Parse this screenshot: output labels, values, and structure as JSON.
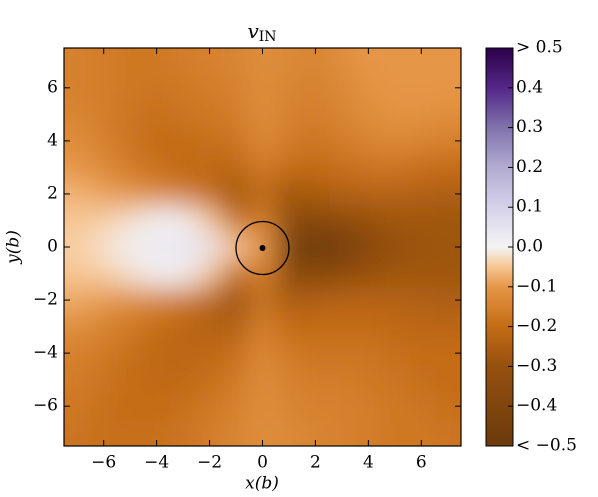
{
  "chart_data": {
    "type": "heatmap",
    "title": {
      "main": "v",
      "sub": "IN"
    },
    "x_label": "x(b)",
    "y_label": "y(b)",
    "colormap": "PuOr",
    "x": [
      -7,
      -6,
      -5,
      -4,
      -3,
      -2,
      -1,
      0,
      1,
      2,
      3,
      4,
      5,
      6,
      7
    ],
    "y": [
      7,
      6,
      5,
      4,
      3,
      2,
      1,
      0,
      -1,
      -2,
      -3,
      -4,
      -5,
      -6,
      -7
    ],
    "values": [
      [
        -0.15,
        -0.16,
        -0.17,
        -0.17,
        -0.16,
        -0.15,
        -0.14,
        -0.12,
        -0.13,
        -0.14,
        -0.12,
        -0.1,
        -0.1,
        -0.1,
        -0.1
      ],
      [
        -0.15,
        -0.16,
        -0.17,
        -0.18,
        -0.17,
        -0.16,
        -0.15,
        -0.12,
        -0.14,
        -0.15,
        -0.13,
        -0.11,
        -0.1,
        -0.1,
        -0.1
      ],
      [
        -0.14,
        -0.16,
        -0.18,
        -0.19,
        -0.18,
        -0.17,
        -0.16,
        -0.12,
        -0.15,
        -0.16,
        -0.14,
        -0.12,
        -0.11,
        -0.11,
        -0.12
      ],
      [
        -0.12,
        -0.15,
        -0.18,
        -0.2,
        -0.2,
        -0.19,
        -0.18,
        -0.13,
        -0.16,
        -0.18,
        -0.16,
        -0.14,
        -0.13,
        -0.14,
        -0.15
      ],
      [
        -0.1,
        -0.13,
        -0.16,
        -0.19,
        -0.21,
        -0.21,
        -0.22,
        -0.16,
        -0.2,
        -0.2,
        -0.19,
        -0.18,
        -0.18,
        -0.19,
        -0.2
      ],
      [
        -0.07,
        -0.09,
        -0.11,
        -0.13,
        -0.16,
        -0.2,
        -0.28,
        -0.2,
        -0.28,
        -0.26,
        -0.24,
        -0.23,
        -0.23,
        -0.24,
        -0.25
      ],
      [
        -0.05,
        -0.04,
        -0.02,
        0.0,
        0.0,
        -0.05,
        -0.2,
        -0.15,
        -0.35,
        -0.38,
        -0.34,
        -0.3,
        -0.28,
        -0.28,
        -0.28
      ],
      [
        -0.04,
        -0.02,
        0.01,
        0.04,
        0.05,
        0.04,
        -0.05,
        -0.1,
        -0.45,
        -0.48,
        -0.46,
        -0.36,
        -0.3,
        -0.29,
        -0.28
      ],
      [
        -0.05,
        -0.04,
        -0.02,
        0.0,
        0.0,
        -0.05,
        -0.2,
        -0.15,
        -0.35,
        -0.38,
        -0.34,
        -0.3,
        -0.28,
        -0.28,
        -0.28
      ],
      [
        -0.08,
        -0.1,
        -0.12,
        -0.14,
        -0.17,
        -0.22,
        -0.3,
        -0.18,
        -0.26,
        -0.24,
        -0.23,
        -0.23,
        -0.23,
        -0.24,
        -0.25
      ],
      [
        -0.12,
        -0.14,
        -0.17,
        -0.2,
        -0.22,
        -0.24,
        -0.24,
        -0.15,
        -0.2,
        -0.2,
        -0.2,
        -0.2,
        -0.21,
        -0.22,
        -0.22
      ],
      [
        -0.15,
        -0.17,
        -0.19,
        -0.21,
        -0.22,
        -0.21,
        -0.19,
        -0.13,
        -0.17,
        -0.18,
        -0.18,
        -0.18,
        -0.19,
        -0.2,
        -0.2
      ],
      [
        -0.16,
        -0.18,
        -0.2,
        -0.21,
        -0.21,
        -0.19,
        -0.17,
        -0.12,
        -0.15,
        -0.16,
        -0.16,
        -0.17,
        -0.18,
        -0.19,
        -0.2
      ],
      [
        -0.17,
        -0.19,
        -0.2,
        -0.2,
        -0.19,
        -0.17,
        -0.15,
        -0.12,
        -0.14,
        -0.15,
        -0.15,
        -0.16,
        -0.17,
        -0.18,
        -0.19
      ],
      [
        -0.18,
        -0.19,
        -0.19,
        -0.19,
        -0.18,
        -0.16,
        -0.14,
        -0.12,
        -0.13,
        -0.14,
        -0.15,
        -0.16,
        -0.17,
        -0.17,
        -0.18
      ]
    ],
    "xlim": [
      -7.5,
      7.5
    ],
    "ylim": [
      -7.5,
      7.5
    ],
    "xticks": [
      {
        "value": -6,
        "label": "−6"
      },
      {
        "value": -4,
        "label": "−4"
      },
      {
        "value": -2,
        "label": "−2"
      },
      0,
      2,
      4,
      6
    ],
    "yticks": [
      {
        "value": -6,
        "label": "−6"
      },
      {
        "value": -4,
        "label": "−4"
      },
      {
        "value": -2,
        "label": "−2"
      },
      0,
      2,
      4,
      6
    ],
    "clim": [
      -0.5,
      0.5
    ],
    "cticks": [
      {
        "value": -0.5,
        "label": "< −0.5"
      },
      {
        "value": -0.4,
        "label": "−0.4"
      },
      {
        "value": -0.3,
        "label": "−0.3"
      },
      {
        "value": -0.2,
        "label": "−0.2"
      },
      {
        "value": -0.1,
        "label": "−0.1"
      },
      {
        "value": 0,
        "label": "0.0"
      },
      0.1,
      0.2,
      0.3,
      0.4,
      {
        "value": 0.5,
        "label": "> 0.5"
      }
    ]
  }
}
